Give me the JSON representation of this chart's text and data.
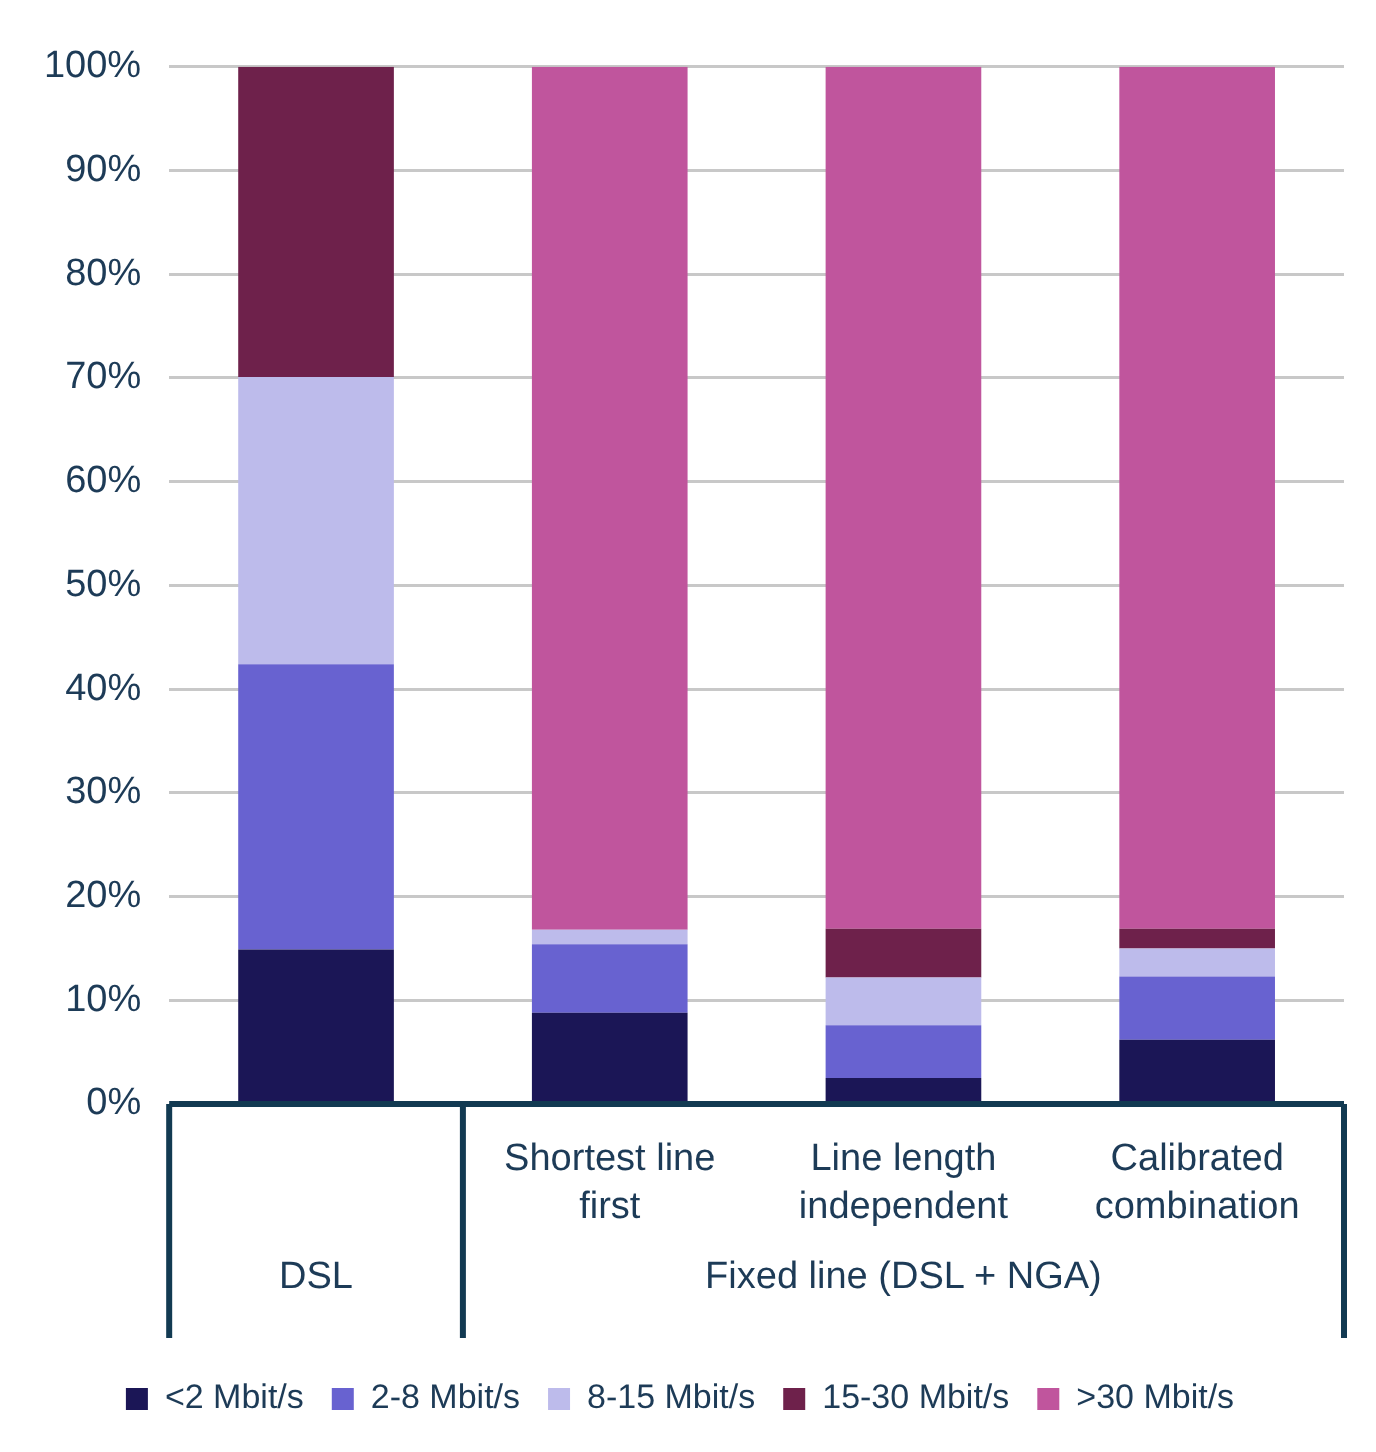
{
  "chart_data": {
    "type": "bar",
    "stacked": true,
    "categories": [
      null,
      "Shortest line first",
      "Line length independent",
      "Calibrated combination"
    ],
    "annotations": [
      "DSL",
      "Fixed line (DSL + NGA)"
    ],
    "series": [
      {
        "name": "<2 Mbit/s",
        "color": "#1b1656",
        "values": [
          14.9,
          8.8,
          2.5,
          6.2
        ]
      },
      {
        "name": "2-8 Mbit/s",
        "color": "#6862d0",
        "values": [
          27.5,
          6.6,
          5.1,
          6.1
        ]
      },
      {
        "name": "8-15 Mbit/s",
        "color": "#bdbbeb",
        "values": [
          27.7,
          1.4,
          4.6,
          2.7
        ]
      },
      {
        "name": "15-30 Mbit/s",
        "color": "#6e214b",
        "values": [
          29.9,
          0,
          4.7,
          1.9
        ]
      },
      {
        "name": ">30 Mbit/s",
        "color": "#c0559d",
        "values": [
          0,
          83.2,
          83.1,
          83.1
        ]
      }
    ],
    "ylim": [
      0,
      100
    ],
    "yticks": [
      {
        "value": 0,
        "label": "0%"
      },
      {
        "value": 10,
        "label": "10%"
      },
      {
        "value": 20,
        "label": "20%"
      },
      {
        "value": 30,
        "label": "30%"
      },
      {
        "value": 40,
        "label": "40%"
      },
      {
        "value": 50,
        "label": "50%"
      },
      {
        "value": 60,
        "label": "60%"
      },
      {
        "value": 70,
        "label": "70%"
      },
      {
        "value": 80,
        "label": "80%"
      },
      {
        "value": 90,
        "label": "90%"
      },
      {
        "value": 100,
        "label": "100%"
      }
    ],
    "grid": "y",
    "legend": "bottom"
  }
}
